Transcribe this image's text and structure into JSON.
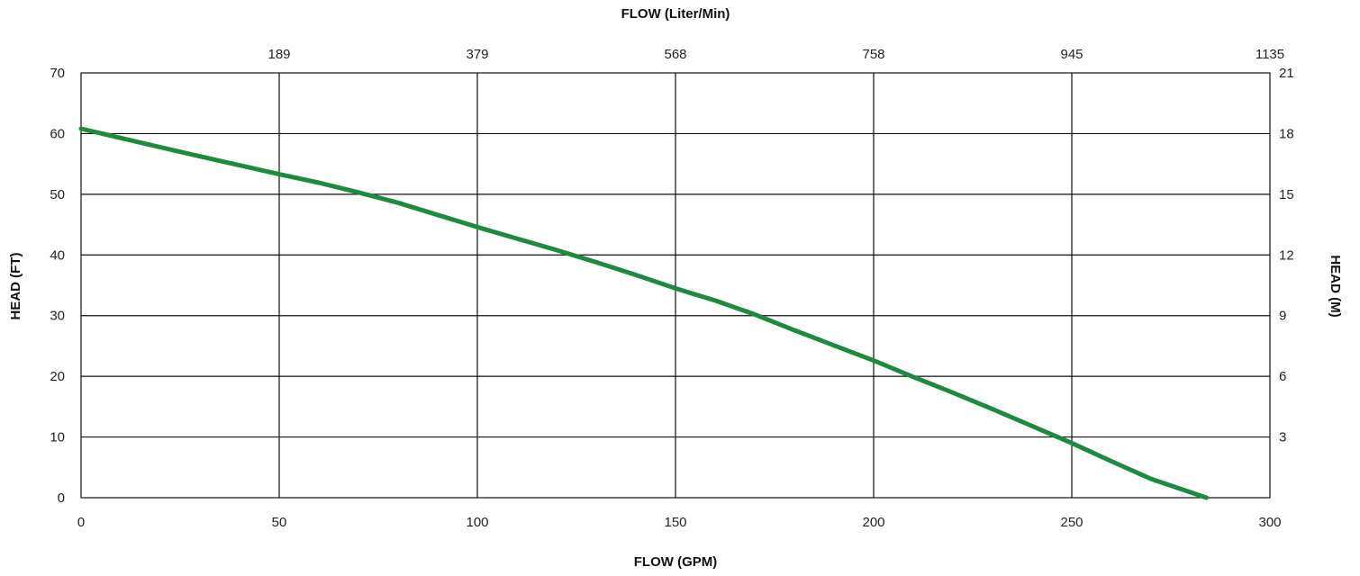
{
  "chart_data": {
    "type": "line",
    "title": "",
    "top_axis_title": "FLOW (Liter/Min)",
    "xlabel": "FLOW (GPM)",
    "ylabel": "HEAD (FT)",
    "y2label": "HEAD (M)",
    "xlim": [
      0,
      300
    ],
    "ylim": [
      0,
      70
    ],
    "x_ticks": [
      0,
      50,
      100,
      150,
      200,
      250,
      300
    ],
    "y_ticks": [
      0,
      10,
      20,
      30,
      40,
      50,
      60,
      70
    ],
    "top_ticks": [
      {
        "at": 50,
        "label": "189"
      },
      {
        "at": 100,
        "label": "379"
      },
      {
        "at": 150,
        "label": "568"
      },
      {
        "at": 200,
        "label": "758"
      },
      {
        "at": 250,
        "label": "945"
      },
      {
        "at": 300,
        "label": "1135"
      }
    ],
    "right_ticks": [
      {
        "at": 10,
        "label": "3"
      },
      {
        "at": 20,
        "label": "6"
      },
      {
        "at": 30,
        "label": "9"
      },
      {
        "at": 40,
        "label": "12"
      },
      {
        "at": 50,
        "label": "15"
      },
      {
        "at": 60,
        "label": "18"
      },
      {
        "at": 70,
        "label": "21"
      }
    ],
    "grid": true,
    "legend": "none",
    "series": [
      {
        "color": "#1e8a3e",
        "x": [
          0,
          25,
          50,
          60,
          70,
          80,
          90,
          100,
          110,
          120,
          130,
          140,
          150,
          160,
          170,
          180,
          190,
          200,
          210,
          220,
          230,
          240,
          250,
          260,
          270,
          284
        ],
        "y": [
          60.8,
          57.0,
          53.3,
          51.9,
          50.3,
          48.6,
          46.6,
          44.6,
          42.7,
          40.8,
          38.8,
          36.7,
          34.5,
          32.5,
          30.2,
          27.6,
          25.1,
          22.6,
          19.9,
          17.3,
          14.6,
          11.8,
          9.0,
          6.0,
          3.1,
          0.0
        ]
      }
    ]
  }
}
